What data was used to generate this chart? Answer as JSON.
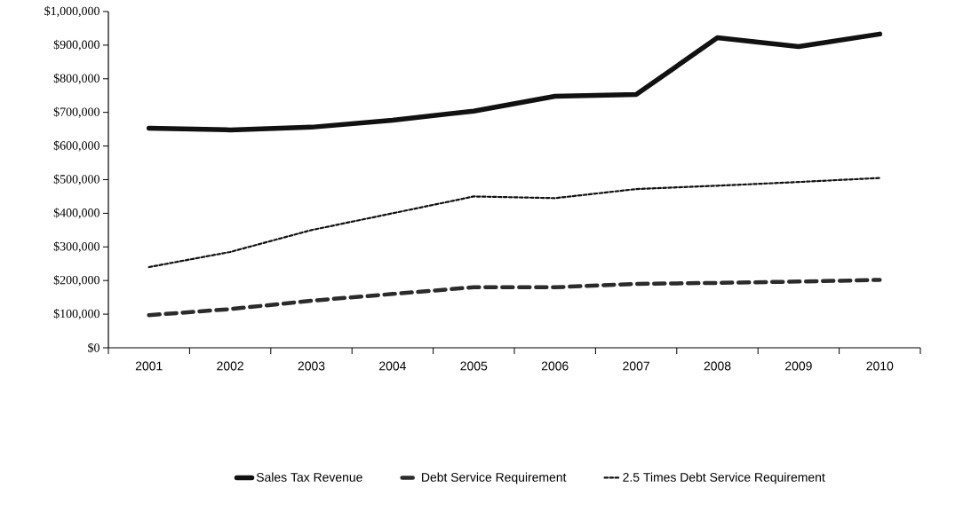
{
  "chart_data": {
    "type": "line",
    "categories": [
      "2001",
      "2002",
      "2003",
      "2004",
      "2005",
      "2006",
      "2007",
      "2008",
      "2009",
      "2010"
    ],
    "series": [
      {
        "name": "Sales Tax Revenue",
        "color": "#111111",
        "line_style": "solid",
        "values": [
          653000,
          648000,
          656000,
          677000,
          704000,
          748000,
          753000,
          922000,
          896000,
          933000
        ]
      },
      {
        "name": "Debt Service Requirement",
        "color": "#2b2b2b",
        "line_style": "dashed",
        "values": [
          97000,
          115000,
          140000,
          160000,
          180000,
          180000,
          190000,
          193000,
          197000,
          202000
        ]
      },
      {
        "name": "2.5 Times Debt Service Requirement",
        "color": "#111111",
        "line_style": "dotted",
        "values": [
          240000,
          285000,
          350000,
          400000,
          450000,
          445000,
          472000,
          482000,
          493000,
          505000
        ]
      }
    ],
    "ylim": [
      0,
      1000000
    ],
    "yticks": [
      {
        "value": 0,
        "label": "$0"
      },
      {
        "value": 100000,
        "label": "$100,000"
      },
      {
        "value": 200000,
        "label": "$200,000"
      },
      {
        "value": 300000,
        "label": "$300,000"
      },
      {
        "value": 400000,
        "label": "$400,000"
      },
      {
        "value": 500000,
        "label": "$500,000"
      },
      {
        "value": 600000,
        "label": "$600,000"
      },
      {
        "value": 700000,
        "label": "$700,000"
      },
      {
        "value": 800000,
        "label": "$800,000"
      },
      {
        "value": 900000,
        "label": "$900,000"
      },
      {
        "value": 1000000,
        "label": "$1,000,000"
      }
    ],
    "grid": false,
    "legend": "bottom",
    "marker": "none"
  }
}
